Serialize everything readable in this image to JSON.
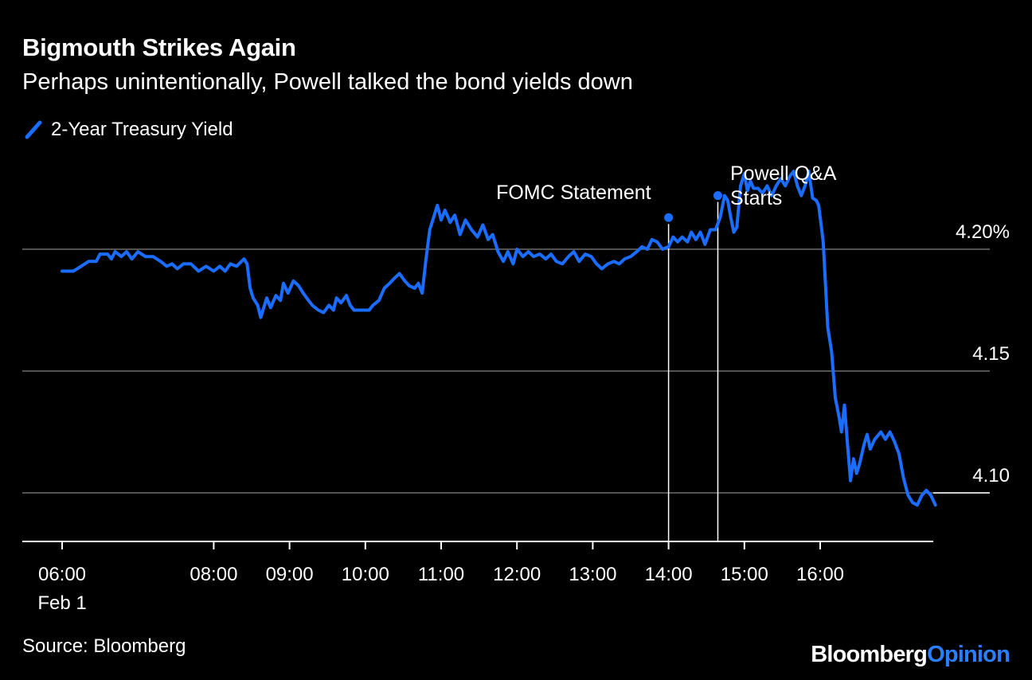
{
  "header": {
    "title": "Bigmouth Strikes Again",
    "subtitle": "Perhaps unintentionally, Powell talked the bond yields down"
  },
  "footer": {
    "source": "Source: Bloomberg",
    "brand_left": "Bloomberg",
    "brand_right": "Opinion"
  },
  "colors": {
    "background": "#000000",
    "series": "#1a6dff",
    "grid": "#6e6e6e",
    "text": "#ffffff",
    "brand_accent": "#2a7fff"
  },
  "chart_data": {
    "type": "line",
    "title": "Bigmouth Strikes Again",
    "subtitle": "Perhaps unintentionally, Powell talked the bond yields down",
    "xlabel": "",
    "ylabel": "",
    "x_unit": "time of day (hours), Feb 1",
    "xlim": [
      5.5,
      17.5
    ],
    "ylim": [
      4.08,
      4.24
    ],
    "y_ticks": [
      {
        "value": 4.2,
        "label": "4.20%"
      },
      {
        "value": 4.15,
        "label": "4.15"
      },
      {
        "value": 4.1,
        "label": "4.10"
      }
    ],
    "x_ticks": [
      {
        "value": 6,
        "label": "06:00",
        "sublabel": "Feb 1"
      },
      {
        "value": 8,
        "label": "08:00"
      },
      {
        "value": 9,
        "label": "09:00"
      },
      {
        "value": 10,
        "label": "10:00"
      },
      {
        "value": 11,
        "label": "11:00"
      },
      {
        "value": 12,
        "label": "12:00"
      },
      {
        "value": 13,
        "label": "13:00"
      },
      {
        "value": 14,
        "label": "14:00"
      },
      {
        "value": 15,
        "label": "15:00"
      },
      {
        "value": 16,
        "label": "16:00"
      }
    ],
    "grid": true,
    "legend": "top-left",
    "series": [
      {
        "name": "2-Year Treasury Yield",
        "color": "#1a6dff",
        "points": [
          [
            6.0,
            4.191
          ],
          [
            6.15,
            4.191
          ],
          [
            6.25,
            4.193
          ],
          [
            6.35,
            4.195
          ],
          [
            6.45,
            4.195
          ],
          [
            6.5,
            4.198
          ],
          [
            6.6,
            4.198
          ],
          [
            6.65,
            4.196
          ],
          [
            6.7,
            4.199
          ],
          [
            6.78,
            4.197
          ],
          [
            6.85,
            4.199
          ],
          [
            6.92,
            4.196
          ],
          [
            7.0,
            4.199
          ],
          [
            7.1,
            4.197
          ],
          [
            7.2,
            4.197
          ],
          [
            7.3,
            4.195
          ],
          [
            7.38,
            4.193
          ],
          [
            7.45,
            4.194
          ],
          [
            7.52,
            4.192
          ],
          [
            7.6,
            4.194
          ],
          [
            7.7,
            4.194
          ],
          [
            7.8,
            4.191
          ],
          [
            7.9,
            4.193
          ],
          [
            8.0,
            4.191
          ],
          [
            8.08,
            4.193
          ],
          [
            8.15,
            4.191
          ],
          [
            8.22,
            4.194
          ],
          [
            8.3,
            4.193
          ],
          [
            8.4,
            4.196
          ],
          [
            8.44,
            4.194
          ],
          [
            8.48,
            4.184
          ],
          [
            8.52,
            4.18
          ],
          [
            8.58,
            4.177
          ],
          [
            8.62,
            4.172
          ],
          [
            8.7,
            4.18
          ],
          [
            8.75,
            4.176
          ],
          [
            8.82,
            4.181
          ],
          [
            8.88,
            4.179
          ],
          [
            8.92,
            4.186
          ],
          [
            8.98,
            4.182
          ],
          [
            9.05,
            4.187
          ],
          [
            9.12,
            4.185
          ],
          [
            9.18,
            4.182
          ],
          [
            9.25,
            4.179
          ],
          [
            9.3,
            4.177
          ],
          [
            9.38,
            4.175
          ],
          [
            9.45,
            4.174
          ],
          [
            9.52,
            4.177
          ],
          [
            9.58,
            4.175
          ],
          [
            9.62,
            4.18
          ],
          [
            9.68,
            4.178
          ],
          [
            9.75,
            4.181
          ],
          [
            9.8,
            4.177
          ],
          [
            9.85,
            4.175
          ],
          [
            9.92,
            4.175
          ],
          [
            10.0,
            4.175
          ],
          [
            10.05,
            4.175
          ],
          [
            10.1,
            4.177
          ],
          [
            10.18,
            4.179
          ],
          [
            10.25,
            4.184
          ],
          [
            10.32,
            4.186
          ],
          [
            10.38,
            4.188
          ],
          [
            10.45,
            4.19
          ],
          [
            10.52,
            4.187
          ],
          [
            10.58,
            4.185
          ],
          [
            10.65,
            4.184
          ],
          [
            10.7,
            4.186
          ],
          [
            10.75,
            4.182
          ],
          [
            10.8,
            4.196
          ],
          [
            10.85,
            4.208
          ],
          [
            10.9,
            4.213
          ],
          [
            10.95,
            4.218
          ],
          [
            11.0,
            4.212
          ],
          [
            11.05,
            4.216
          ],
          [
            11.12,
            4.211
          ],
          [
            11.18,
            4.214
          ],
          [
            11.25,
            4.206
          ],
          [
            11.32,
            4.212
          ],
          [
            11.4,
            4.208
          ],
          [
            11.48,
            4.205
          ],
          [
            11.55,
            4.21
          ],
          [
            11.62,
            4.204
          ],
          [
            11.68,
            4.206
          ],
          [
            11.75,
            4.199
          ],
          [
            11.82,
            4.195
          ],
          [
            11.88,
            4.199
          ],
          [
            11.95,
            4.194
          ],
          [
            12.0,
            4.2
          ],
          [
            12.08,
            4.197
          ],
          [
            12.15,
            4.199
          ],
          [
            12.22,
            4.197
          ],
          [
            12.3,
            4.198
          ],
          [
            12.38,
            4.196
          ],
          [
            12.45,
            4.198
          ],
          [
            12.52,
            4.195
          ],
          [
            12.6,
            4.194
          ],
          [
            12.68,
            4.197
          ],
          [
            12.75,
            4.199
          ],
          [
            12.82,
            4.195
          ],
          [
            12.9,
            4.198
          ],
          [
            12.98,
            4.197
          ],
          [
            13.05,
            4.194
          ],
          [
            13.12,
            4.192
          ],
          [
            13.2,
            4.194
          ],
          [
            13.28,
            4.195
          ],
          [
            13.35,
            4.194
          ],
          [
            13.42,
            4.196
          ],
          [
            13.5,
            4.197
          ],
          [
            13.58,
            4.199
          ],
          [
            13.65,
            4.201
          ],
          [
            13.72,
            4.2
          ],
          [
            13.78,
            4.204
          ],
          [
            13.85,
            4.203
          ],
          [
            13.92,
            4.2
          ],
          [
            14.0,
            4.201
          ],
          [
            14.06,
            4.205
          ],
          [
            14.12,
            4.203
          ],
          [
            14.18,
            4.205
          ],
          [
            14.25,
            4.203
          ],
          [
            14.3,
            4.207
          ],
          [
            14.36,
            4.204
          ],
          [
            14.42,
            4.207
          ],
          [
            14.48,
            4.202
          ],
          [
            14.55,
            4.208
          ],
          [
            14.62,
            4.208
          ],
          [
            14.68,
            4.213
          ],
          [
            14.74,
            4.222
          ],
          [
            14.78,
            4.22
          ],
          [
            14.82,
            4.213
          ],
          [
            14.86,
            4.207
          ],
          [
            14.9,
            4.209
          ],
          [
            14.95,
            4.226
          ],
          [
            15.0,
            4.231
          ],
          [
            15.04,
            4.224
          ],
          [
            15.08,
            4.228
          ],
          [
            15.12,
            4.225
          ],
          [
            15.18,
            4.225
          ],
          [
            15.24,
            4.223
          ],
          [
            15.3,
            4.226
          ],
          [
            15.36,
            4.222
          ],
          [
            15.42,
            4.226
          ],
          [
            15.48,
            4.229
          ],
          [
            15.54,
            4.226
          ],
          [
            15.6,
            4.23
          ],
          [
            15.65,
            4.232
          ],
          [
            15.7,
            4.226
          ],
          [
            15.75,
            4.222
          ],
          [
            15.8,
            4.226
          ],
          [
            15.85,
            4.232
          ],
          [
            15.9,
            4.221
          ],
          [
            15.95,
            4.22
          ],
          [
            15.98,
            4.218
          ],
          [
            16.04,
            4.203
          ],
          [
            16.1,
            4.168
          ],
          [
            16.15,
            4.158
          ],
          [
            16.2,
            4.139
          ],
          [
            16.25,
            4.131
          ],
          [
            16.28,
            4.125
          ],
          [
            16.32,
            4.136
          ],
          [
            16.36,
            4.12
          ],
          [
            16.4,
            4.105
          ],
          [
            16.44,
            4.114
          ],
          [
            16.48,
            4.108
          ],
          [
            16.52,
            4.112
          ],
          [
            16.58,
            4.12
          ],
          [
            16.62,
            4.124
          ],
          [
            16.66,
            4.118
          ],
          [
            16.72,
            4.122
          ],
          [
            16.8,
            4.125
          ],
          [
            16.86,
            4.122
          ],
          [
            16.92,
            4.125
          ],
          [
            16.98,
            4.121
          ],
          [
            17.04,
            4.116
          ],
          [
            17.1,
            4.106
          ],
          [
            17.16,
            4.099
          ],
          [
            17.22,
            4.096
          ],
          [
            17.28,
            4.095
          ],
          [
            17.34,
            4.099
          ],
          [
            17.4,
            4.101
          ],
          [
            17.46,
            4.099
          ],
          [
            17.52,
            4.095
          ]
        ]
      }
    ],
    "annotations": [
      {
        "label": "FOMC Statement",
        "x": 14.0,
        "y": 4.213
      },
      {
        "label": "Powell Q&A Starts",
        "x": 14.65,
        "y": 4.222
      }
    ]
  }
}
